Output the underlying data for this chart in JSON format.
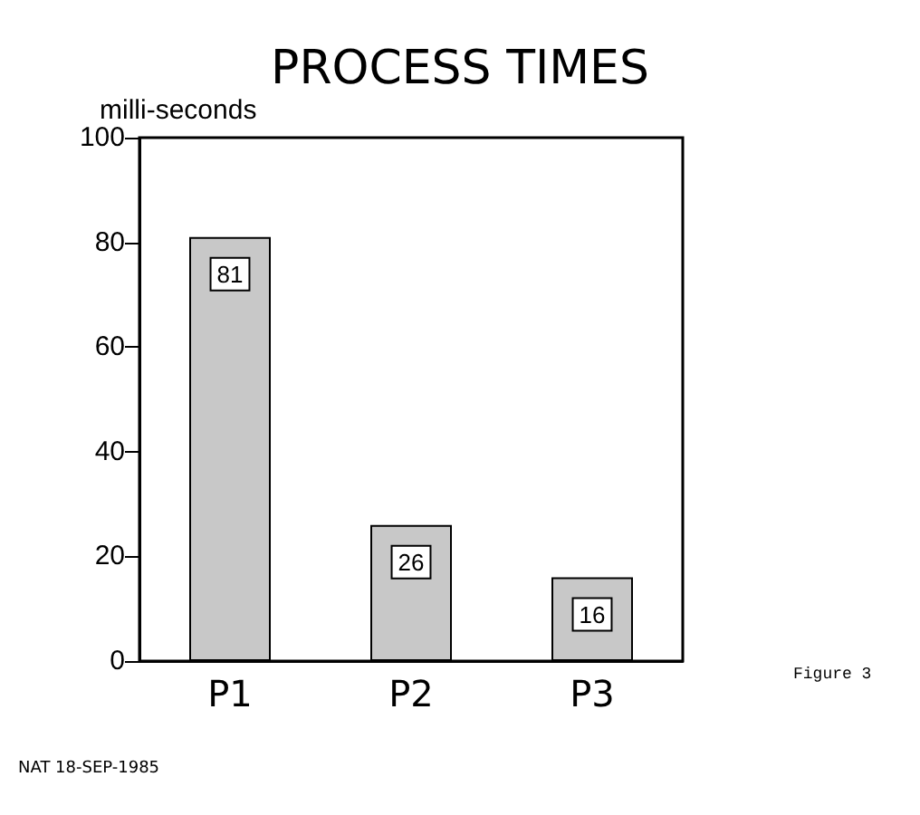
{
  "chart_data": {
    "type": "bar",
    "title": "PROCESS TIMES",
    "ylabel": "milli-seconds",
    "categories": [
      "P1",
      "P2",
      "P3"
    ],
    "values": [
      81,
      26,
      16
    ],
    "color": "#c8c8c8",
    "data_labels": true,
    "ylim": [
      0,
      100
    ],
    "yticks": [
      0,
      20,
      40,
      60,
      80,
      100
    ],
    "grid": false,
    "annotations": [
      "Figure 3",
      "NAT 18-SEP-1985"
    ]
  }
}
